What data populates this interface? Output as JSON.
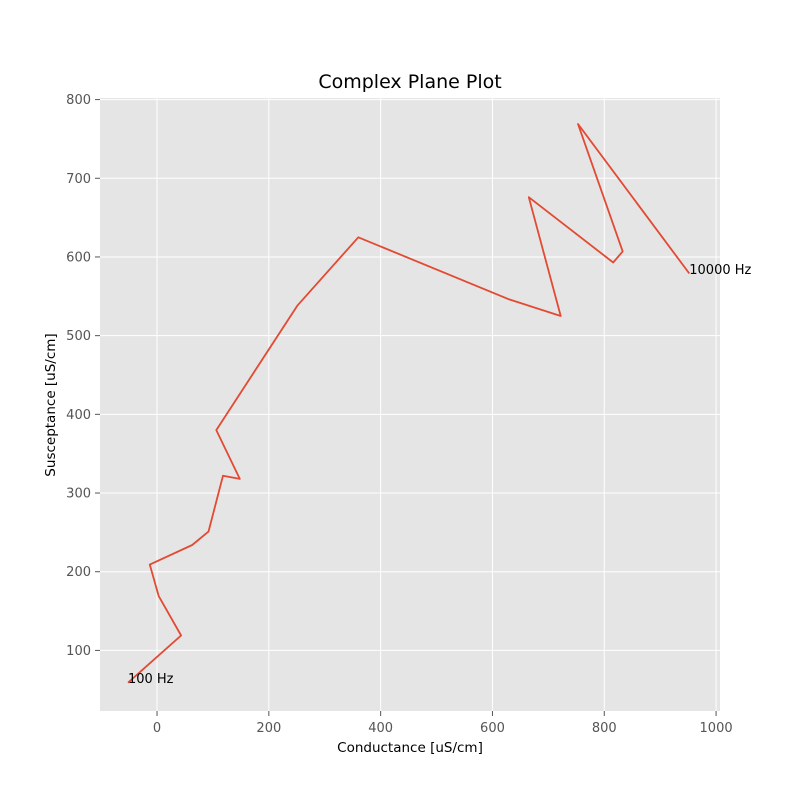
{
  "chart_data": {
    "type": "line",
    "title": "Complex Plane Plot",
    "xlabel": "Conductance [uS/cm]",
    "ylabel": "Susceptance [uS/cm]",
    "xlim": [
      -102,
      1007
    ],
    "ylim": [
      23,
      802
    ],
    "x_ticks": [
      0,
      200,
      400,
      600,
      800,
      1000
    ],
    "y_ticks": [
      100,
      200,
      300,
      400,
      500,
      600,
      700,
      800
    ],
    "grid": true,
    "series": [
      {
        "color": "#e24a33",
        "points": [
          [
            -52,
            59
          ],
          [
            43,
            119
          ],
          [
            3,
            169
          ],
          [
            -13,
            209
          ],
          [
            63,
            234
          ],
          [
            92,
            251
          ],
          [
            118,
            322
          ],
          [
            148,
            318
          ],
          [
            106,
            380
          ],
          [
            251,
            538
          ],
          [
            360,
            625
          ],
          [
            630,
            546
          ],
          [
            722,
            525
          ],
          [
            665,
            676
          ],
          [
            816,
            593
          ],
          [
            833,
            607
          ],
          [
            753,
            769
          ],
          [
            952,
            579
          ]
        ]
      }
    ],
    "annotations": [
      {
        "text": "100 Hz",
        "x": -52,
        "y": 59
      },
      {
        "text": "10000 Hz",
        "x": 952,
        "y": 579
      }
    ],
    "colors": {
      "plot_background": "#e5e5e5",
      "grid": "#ffffff",
      "line": "#e24a33",
      "tick_text": "#555555"
    }
  }
}
